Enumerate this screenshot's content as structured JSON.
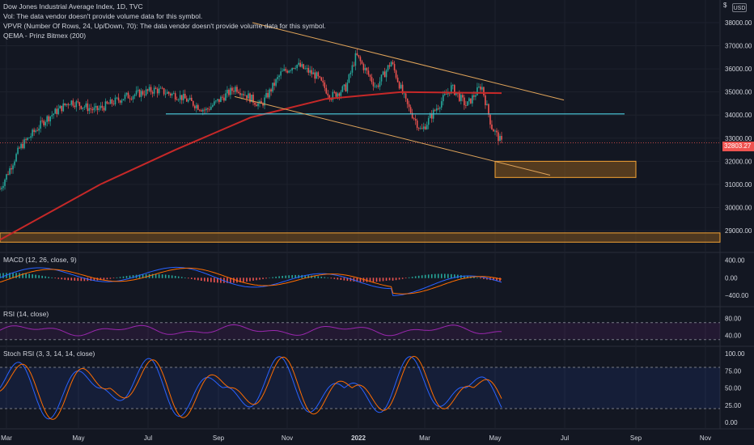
{
  "legend": {
    "title": "Dow Jones Industrial Average Index, 1D, TVC",
    "vol": "Vol: The data vendor doesn't provide volume data for this symbol.",
    "vpvr": "VPVR (Number Of Rows, 24, Up/Down, 70): The data vendor doesn't provide volume data for this symbol.",
    "qema": "QEMA - Prinz Bitmex (200)"
  },
  "currency": "USD",
  "currency_prefix": "$",
  "last_price": "32803.27",
  "colors": {
    "up": "#26a69a",
    "down": "#ef5350",
    "ema": "#c62828",
    "support": "#4dd0e1",
    "channel": "#e0a45a",
    "zone_fill": "#8a5a1e",
    "zone_border": "#f6a434",
    "macd": "#2962ff",
    "signal": "#ff6d00",
    "rsi": "#9c27b0",
    "k": "#2962ff",
    "d": "#ff6d00"
  },
  "panes": {
    "macd": {
      "label": "MACD (12, 26, close, 9)",
      "ticks": [
        "400.00",
        "0.00",
        "−400.00"
      ]
    },
    "rsi": {
      "label": "RSI (14, close)",
      "ticks": [
        "80.00",
        "40.00"
      ]
    },
    "stoch": {
      "label": "Stoch RSI (3, 3, 14, 14, close)",
      "ticks": [
        "100.00",
        "75.00",
        "50.00",
        "25.00",
        "0.00"
      ]
    }
  },
  "chart_data": {
    "type": "candlestick",
    "price_ticks": [
      "38000.00",
      "37000.00",
      "36000.00",
      "35000.00",
      "34000.00",
      "33000.00",
      "32000.00",
      "31000.00",
      "30000.00",
      "29000.00"
    ],
    "time_ticks": [
      "Mar",
      "May",
      "Jul",
      "Sep",
      "Nov",
      "2022",
      "Mar",
      "May",
      "Jul",
      "Sep",
      "Nov"
    ],
    "ylim": [
      28300,
      38700
    ],
    "price_ticks_values": [
      38000,
      37000,
      36000,
      35000,
      34000,
      33000,
      32000,
      31000,
      30000,
      29000
    ],
    "trend": [
      {
        "x": 0,
        "y": 30800
      },
      {
        "x": 0.04,
        "y": 32600
      },
      {
        "x": 0.09,
        "y": 33800
      },
      {
        "x": 0.14,
        "y": 34600
      },
      {
        "x": 0.19,
        "y": 34200
      },
      {
        "x": 0.25,
        "y": 34800
      },
      {
        "x": 0.31,
        "y": 35100
      },
      {
        "x": 0.36,
        "y": 34800
      },
      {
        "x": 0.41,
        "y": 34200
      },
      {
        "x": 0.47,
        "y": 35200
      },
      {
        "x": 0.52,
        "y": 34400
      },
      {
        "x": 0.56,
        "y": 35800
      },
      {
        "x": 0.59,
        "y": 36200
      },
      {
        "x": 0.63,
        "y": 35700
      },
      {
        "x": 0.66,
        "y": 34800
      },
      {
        "x": 0.69,
        "y": 35200
      },
      {
        "x": 0.71,
        "y": 36600
      },
      {
        "x": 0.75,
        "y": 35200
      },
      {
        "x": 0.78,
        "y": 36300
      },
      {
        "x": 0.81,
        "y": 34500
      },
      {
        "x": 0.84,
        "y": 33300
      },
      {
        "x": 0.87,
        "y": 34300
      },
      {
        "x": 0.9,
        "y": 35200
      },
      {
        "x": 0.93,
        "y": 34400
      },
      {
        "x": 0.96,
        "y": 35300
      },
      {
        "x": 0.98,
        "y": 33500
      },
      {
        "x": 1,
        "y": 32800
      }
    ],
    "ema_path": [
      [
        0,
        28600
      ],
      [
        0.2,
        31000
      ],
      [
        0.35,
        32500
      ],
      [
        0.5,
        33900
      ],
      [
        0.65,
        34700
      ],
      [
        0.8,
        35000
      ],
      [
        1,
        34950
      ]
    ]
  }
}
